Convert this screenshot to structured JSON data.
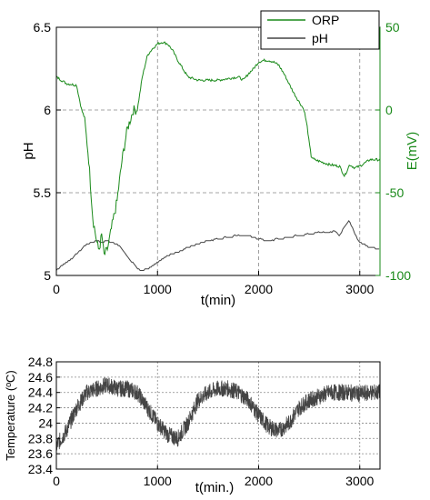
{
  "colors": {
    "orp": "#1a8a1a",
    "ph": "#444444",
    "temperature": "#444444",
    "grid": "#888888",
    "axis": "#000000",
    "green_axis": "#1a8a1a"
  },
  "chart_data": [
    {
      "type": "line",
      "xlabel": "t(min)",
      "ylabel": "pH",
      "y2label": "E(mV)",
      "xlim": [
        0,
        3200
      ],
      "ylim": [
        5.0,
        6.5
      ],
      "y2lim": [
        -100,
        50
      ],
      "xticks": [
        "0",
        "1000",
        "2000",
        "3000"
      ],
      "yticks": [
        "5",
        "5.5",
        "6",
        "6.5"
      ],
      "y2ticks": [
        "-100",
        "-50",
        "0",
        "50"
      ],
      "grid": true,
      "legend": {
        "position": "top-right",
        "entries": [
          "ORP",
          "pH"
        ]
      },
      "series": [
        {
          "name": "ORP",
          "axis": "right",
          "x": [
            0,
            100,
            200,
            250,
            280,
            320,
            360,
            400,
            420,
            450,
            470,
            500,
            520,
            550,
            600,
            650,
            700,
            760,
            800,
            850,
            900,
            950,
            1000,
            1050,
            1100,
            1150,
            1200,
            1250,
            1300,
            1400,
            1500,
            1600,
            1700,
            1800,
            1850,
            1900,
            1950,
            2000,
            2050,
            2100,
            2150,
            2200,
            2250,
            2300,
            2350,
            2400,
            2450,
            2480,
            2500,
            2520,
            2550,
            2600,
            2700,
            2800,
            2850,
            2900,
            2950,
            3000,
            3100,
            3200
          ],
          "y": [
            20,
            16,
            15,
            0,
            -5,
            -30,
            -65,
            -80,
            -85,
            -75,
            -88,
            -85,
            -80,
            -70,
            -55,
            -30,
            -12,
            0,
            0,
            20,
            33,
            37,
            40,
            41,
            40,
            36,
            30,
            25,
            20,
            18,
            18,
            18,
            19,
            20,
            18,
            22,
            25,
            29,
            30,
            30,
            29,
            27,
            22,
            16,
            10,
            5,
            0,
            -10,
            -20,
            -28,
            -30,
            -31,
            -33,
            -34,
            -40,
            -33,
            -35,
            -34,
            -30,
            -30
          ]
        },
        {
          "name": "pH",
          "axis": "left",
          "x": [
            0,
            50,
            100,
            150,
            200,
            250,
            300,
            350,
            400,
            450,
            500,
            550,
            600,
            650,
            700,
            750,
            800,
            850,
            900,
            950,
            1000,
            1100,
            1200,
            1300,
            1400,
            1500,
            1600,
            1700,
            1800,
            1900,
            2000,
            2100,
            2200,
            2300,
            2400,
            2500,
            2600,
            2700,
            2750,
            2800,
            2850,
            2900,
            2950,
            3000,
            3100,
            3200
          ],
          "y": [
            5.03,
            5.06,
            5.08,
            5.1,
            5.13,
            5.16,
            5.19,
            5.2,
            5.21,
            5.2,
            5.21,
            5.2,
            5.19,
            5.16,
            5.12,
            5.08,
            5.04,
            5.03,
            5.04,
            5.06,
            5.08,
            5.12,
            5.14,
            5.17,
            5.19,
            5.21,
            5.22,
            5.23,
            5.24,
            5.24,
            5.22,
            5.21,
            5.22,
            5.23,
            5.24,
            5.25,
            5.26,
            5.26,
            5.27,
            5.24,
            5.3,
            5.33,
            5.25,
            5.2,
            5.17,
            5.16
          ]
        }
      ]
    },
    {
      "type": "line",
      "xlabel": "t(min.)",
      "ylabel": "Temperature (ºC)",
      "xlim": [
        0,
        3200
      ],
      "ylim": [
        23.4,
        24.8
      ],
      "xticks": [
        "0",
        "1000",
        "2000",
        "3000"
      ],
      "yticks": [
        "23.4",
        "23.6",
        "23.8",
        "24",
        "24.2",
        "24.4",
        "24.6",
        "24.8"
      ],
      "grid": true,
      "series": [
        {
          "x": [
            0,
            100,
            200,
            300,
            400,
            500,
            600,
            700,
            800,
            900,
            1000,
            1100,
            1200,
            1300,
            1400,
            1500,
            1600,
            1700,
            1800,
            1900,
            2000,
            2100,
            2200,
            2300,
            2400,
            2500,
            2600,
            2700,
            2800,
            2900,
            3000,
            3100,
            3200
          ],
          "y": [
            23.7,
            23.9,
            24.2,
            24.4,
            24.45,
            24.5,
            24.45,
            24.45,
            24.4,
            24.2,
            24.0,
            23.85,
            23.8,
            24.0,
            24.3,
            24.4,
            24.45,
            24.45,
            24.4,
            24.3,
            24.1,
            23.95,
            23.9,
            24.0,
            24.2,
            24.3,
            24.35,
            24.4,
            24.4,
            24.4,
            24.38,
            24.4,
            24.4
          ]
        }
      ]
    }
  ]
}
